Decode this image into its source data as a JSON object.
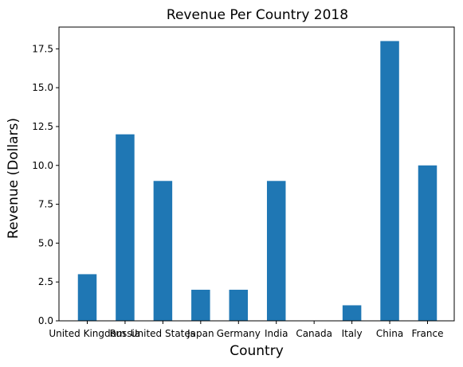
{
  "chart_data": {
    "type": "bar",
    "title": "Revenue Per Country 2018",
    "xlabel": "Country",
    "ylabel": "Revenue (Dollars)",
    "categories": [
      "United Kingdom",
      "Russia",
      "United States",
      "Japan",
      "Germany",
      "India",
      "Canada",
      "Italy",
      "China",
      "France"
    ],
    "values": [
      3,
      12,
      9,
      2,
      2,
      9,
      0,
      1,
      18,
      10
    ],
    "ylim": [
      0,
      18.9
    ],
    "yticks": [
      0.0,
      2.5,
      5.0,
      7.5,
      10.0,
      12.5,
      15.0,
      17.5
    ],
    "ytick_labels": [
      "0.0",
      "2.5",
      "5.0",
      "7.5",
      "10.0",
      "12.5",
      "15.0",
      "17.5"
    ],
    "bar_color": "#1f77b4",
    "grid": false,
    "legend": "none"
  }
}
